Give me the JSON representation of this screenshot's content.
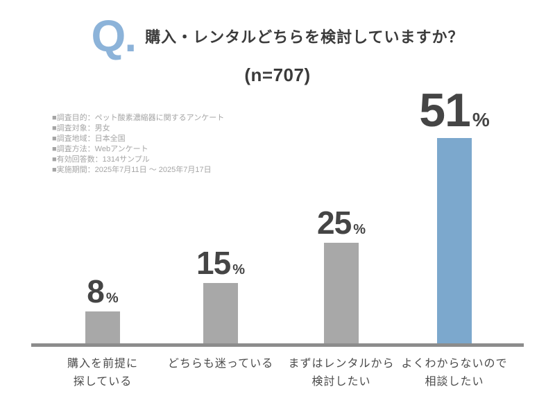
{
  "colors": {
    "q_blue": "#8cb3d9",
    "highlight_blue": "#7ca8cd",
    "bar_gray": "#a8a8a8",
    "axis_gray": "#8c8c8c",
    "value_text": "#454545",
    "label_text": "#4b4b4b",
    "info_text": "#a5a5a5",
    "title_text": "#3b3b3b"
  },
  "header": {
    "q_mark": "Q.",
    "question": "購入・レンタルどちらを検討していますか？",
    "sample_size": "(n=707)"
  },
  "survey_info": {
    "lines": [
      "■調査目的：ペット酸素濃縮器に関するアンケート",
      "■調査対象：男女",
      "■調査地域：日本全国",
      "■調査方法：Webアンケート",
      "■有効回答数：1314サンプル",
      "■実施期間：2025年7月11日 ～ 2025年7月17日"
    ]
  },
  "chart_data": {
    "type": "bar",
    "title": "購入・レンタルどちらを検討していますか？",
    "n": 707,
    "categories": [
      [
        "購入を前提に",
        "探している"
      ],
      [
        "どちらも迷っている"
      ],
      [
        "まずはレンタルから",
        "検討したい"
      ],
      [
        "よくわからないので",
        "相談したい"
      ]
    ],
    "values": [
      8,
      15,
      25,
      51
    ],
    "unit": "%",
    "bar_colors": [
      "#a8a8a8",
      "#a8a8a8",
      "#a8a8a8",
      "#7ca8cd"
    ],
    "highlight_index": 3,
    "xlabel": "",
    "ylabel": "",
    "ylim": [
      0,
      60
    ],
    "grid": false,
    "legend": false,
    "value_label_position": "above-bars"
  }
}
